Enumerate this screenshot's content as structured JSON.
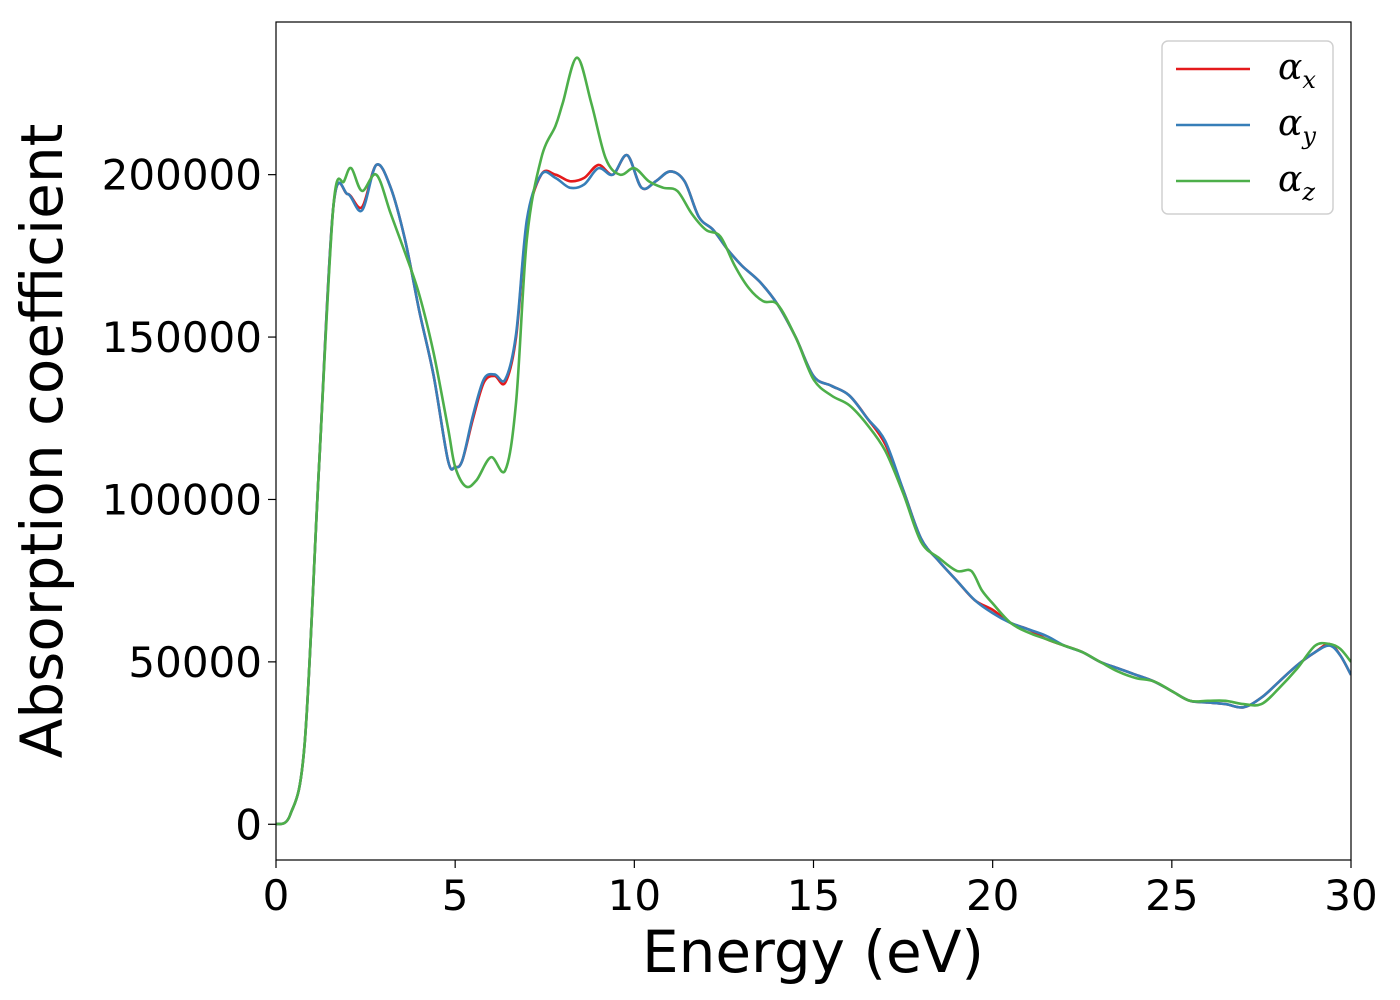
{
  "chart_data": {
    "type": "line",
    "title": "",
    "xlabel": "Energy (eV)",
    "ylabel": "Absorption coefficient",
    "xlim": [
      0,
      30
    ],
    "ylim": [
      -11000,
      247000
    ],
    "xticks": [
      0,
      5,
      10,
      15,
      20,
      25,
      30
    ],
    "yticks": [
      0,
      50000,
      100000,
      150000,
      200000
    ],
    "grid": false,
    "legend_position": "top-right",
    "series": [
      {
        "name": "α",
        "subscript": "x",
        "color": "#e41a1c",
        "x": [
          0,
          0.4,
          0.8,
          1.2,
          1.6,
          2.0,
          2.4,
          2.8,
          3.2,
          3.6,
          4.0,
          4.4,
          4.8,
          5.0,
          5.2,
          5.5,
          5.8,
          6.1,
          6.4,
          6.7,
          7.0,
          7.4,
          7.8,
          8.2,
          8.6,
          9.0,
          9.4,
          9.8,
          10.2,
          10.6,
          11.0,
          11.4,
          11.8,
          12.2,
          12.6,
          13.0,
          13.5,
          14.0,
          14.5,
          15.0,
          15.5,
          16.0,
          16.5,
          17.0,
          17.5,
          18.0,
          18.5,
          19.0,
          19.5,
          20.0,
          20.5,
          21.0,
          21.5,
          22.0,
          22.5,
          23.0,
          23.5,
          24.0,
          24.5,
          25.0,
          25.5,
          26.0,
          26.5,
          27.0,
          27.5,
          28.0,
          28.5,
          29.0,
          29.4,
          29.7,
          30.0
        ],
        "values": [
          0,
          3000,
          25000,
          110000,
          190000,
          194000,
          190000,
          203000,
          196000,
          180000,
          158000,
          138000,
          112000,
          110000,
          112000,
          125000,
          136000,
          138000,
          136000,
          150000,
          185000,
          200000,
          200000,
          198000,
          199000,
          203000,
          200000,
          206000,
          196000,
          198000,
          201000,
          198000,
          187000,
          183000,
          177000,
          172000,
          167000,
          160000,
          150000,
          138000,
          135000,
          132000,
          125000,
          117000,
          103000,
          88000,
          81000,
          75000,
          69000,
          66000,
          62000,
          60000,
          57000,
          55000,
          53000,
          50000,
          48000,
          46000,
          44000,
          41000,
          38000,
          37500,
          37000,
          36000,
          39000,
          44000,
          49000,
          53000,
          55500,
          52000,
          46000
        ]
      },
      {
        "name": "α",
        "subscript": "y",
        "color": "#377eb8",
        "x": [
          0,
          0.4,
          0.8,
          1.2,
          1.6,
          2.0,
          2.4,
          2.8,
          3.2,
          3.6,
          4.0,
          4.4,
          4.8,
          5.0,
          5.2,
          5.5,
          5.8,
          6.1,
          6.4,
          6.7,
          7.0,
          7.4,
          7.8,
          8.2,
          8.6,
          9.0,
          9.4,
          9.8,
          10.2,
          10.6,
          11.0,
          11.4,
          11.8,
          12.2,
          12.6,
          13.0,
          13.5,
          14.0,
          14.5,
          15.0,
          15.5,
          16.0,
          16.5,
          17.0,
          17.5,
          18.0,
          18.5,
          19.0,
          19.5,
          20.0,
          20.5,
          21.0,
          21.5,
          22.0,
          22.5,
          23.0,
          23.5,
          24.0,
          24.5,
          25.0,
          25.5,
          26.0,
          26.5,
          27.0,
          27.5,
          28.0,
          28.5,
          29.0,
          29.4,
          29.7,
          30.0
        ],
        "values": [
          0,
          3000,
          25000,
          110000,
          190000,
          194000,
          189000,
          203000,
          196000,
          180000,
          158000,
          138000,
          112000,
          110000,
          112000,
          126000,
          137000,
          138500,
          137000,
          151000,
          186000,
          200000,
          199000,
          196000,
          197000,
          202000,
          200000,
          206000,
          196000,
          198000,
          201000,
          198000,
          187000,
          183000,
          177000,
          172000,
          167000,
          160000,
          150000,
          138000,
          135000,
          132000,
          125000,
          118000,
          103000,
          88000,
          81000,
          75000,
          69000,
          65000,
          62000,
          60000,
          58000,
          55000,
          53000,
          50000,
          48000,
          46000,
          44000,
          41000,
          38000,
          37500,
          37000,
          36000,
          39000,
          44000,
          49000,
          53000,
          55000,
          52000,
          46000
        ]
      },
      {
        "name": "α",
        "subscript": "z",
        "color": "#4daf4a",
        "x": [
          0,
          0.4,
          0.8,
          1.2,
          1.6,
          1.9,
          2.1,
          2.4,
          2.8,
          3.2,
          3.6,
          4.0,
          4.4,
          4.8,
          5.0,
          5.3,
          5.6,
          6.0,
          6.4,
          6.7,
          7.0,
          7.4,
          7.8,
          8.0,
          8.4,
          8.8,
          9.2,
          9.6,
          10.0,
          10.4,
          10.8,
          11.2,
          11.6,
          12.0,
          12.4,
          12.8,
          13.2,
          13.6,
          14.0,
          14.5,
          15.0,
          15.5,
          16.0,
          16.5,
          17.0,
          17.5,
          18.0,
          18.5,
          19.0,
          19.4,
          19.7,
          20.0,
          20.5,
          21.0,
          21.5,
          22.0,
          22.5,
          23.0,
          23.5,
          24.0,
          24.5,
          25.0,
          25.5,
          26.0,
          26.5,
          27.0,
          27.5,
          28.0,
          28.5,
          29.0,
          29.4,
          29.7,
          30.0
        ],
        "values": [
          0,
          3000,
          25000,
          110000,
          190000,
          198000,
          202000,
          195000,
          200000,
          188000,
          176000,
          163000,
          145000,
          122000,
          110000,
          104000,
          106000,
          113000,
          109000,
          130000,
          180000,
          205000,
          215000,
          222000,
          236000,
          222000,
          205000,
          200000,
          202000,
          198000,
          196000,
          195000,
          188000,
          183000,
          181000,
          172000,
          165000,
          161000,
          160000,
          150000,
          137000,
          132000,
          129000,
          123000,
          115000,
          102000,
          87000,
          82000,
          78000,
          78000,
          72000,
          68000,
          62000,
          59000,
          57000,
          55000,
          53000,
          50000,
          47000,
          45000,
          44000,
          41000,
          38000,
          38000,
          38000,
          37000,
          37000,
          42000,
          48000,
          55000,
          55500,
          54000,
          50000
        ]
      }
    ]
  }
}
